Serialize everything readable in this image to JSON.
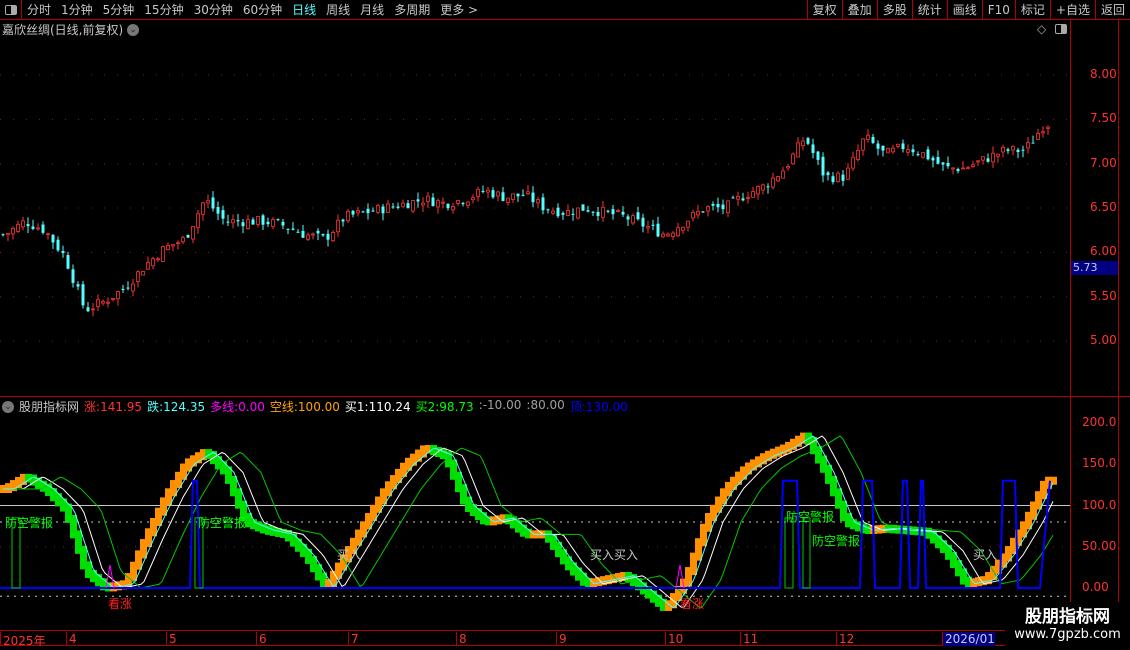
{
  "toolbar": {
    "periods": [
      "分时",
      "1分钟",
      "5分钟",
      "15分钟",
      "30分钟",
      "60分钟",
      "日线",
      "周线",
      "月线",
      "多周期",
      "更多 >"
    ],
    "active_period": "日线",
    "buttons": [
      "复权",
      "叠加",
      "多股",
      "统计",
      "画线",
      "F10",
      "标记",
      "+自选",
      "返回"
    ]
  },
  "stock": {
    "title": "嘉欣丝绸(日线,前复权)",
    "current_price": "5.73"
  },
  "price_axis": [
    "8.00",
    "7.50",
    "7.00",
    "6.50",
    "6.00",
    "5.50",
    "5.00"
  ],
  "indicator": {
    "name": "股朋指标网",
    "legend": [
      {
        "label": "涨:",
        "value": "141.95",
        "color": "#ff3232"
      },
      {
        "label": "跌:",
        "value": "124.35",
        "color": "#54ffff"
      },
      {
        "label": "多线:",
        "value": "0.00",
        "color": "#ff00ff"
      },
      {
        "label": "空线:",
        "value": "100.00",
        "color": "#ffa500"
      },
      {
        "label": "买1:",
        "value": "110.24",
        "color": "#ffffff"
      },
      {
        "label": "买2:",
        "value": "98.73",
        "color": "#00ff00"
      },
      {
        "label": ":",
        "value": "-10.00",
        "color": "#a0a0a0"
      },
      {
        "label": ":",
        "value": "80.00",
        "color": "#a0a0a0"
      },
      {
        "label": "顶:",
        "value": "130.00",
        "color": "#0000ff"
      }
    ],
    "axis": [
      "200.0",
      "150.0",
      "100.0",
      "50.00",
      "0.00"
    ],
    "signals": {
      "alarm": "防空警报",
      "buy": "买入",
      "buy2": "买入买入",
      "bull": "看涨"
    }
  },
  "date_axis": [
    "2025年",
    "4",
    "5",
    "6",
    "7",
    "8",
    "9",
    "10",
    "11",
    "12",
    "2026/01"
  ],
  "watermark": {
    "name": "股朋指标网",
    "url": "www.7gpzb.com"
  },
  "chart_data": {
    "type": "candlestick",
    "closes_approx": [
      6.2,
      6.35,
      6.25,
      5.95,
      5.35,
      5.45,
      5.6,
      5.85,
      6.05,
      6.15,
      6.6,
      6.35,
      6.35,
      6.35,
      6.3,
      6.2,
      6.15,
      6.4,
      6.45,
      6.5,
      6.55,
      6.6,
      6.55,
      6.6,
      6.7,
      6.62,
      6.65,
      6.5,
      6.45,
      6.5,
      6.45,
      6.4,
      6.3,
      6.2,
      6.35,
      6.5,
      6.5,
      6.65,
      6.75,
      6.95,
      7.3,
      6.85,
      6.85,
      7.3,
      7.1,
      7.2,
      7.1,
      6.95,
      6.95,
      7.05,
      7.15,
      7.15,
      7.45
    ],
    "oscillator_approx": [
      120,
      135,
      120,
      95,
      20,
      0,
      5,
      60,
      110,
      150,
      165,
      140,
      80,
      70,
      65,
      40,
      0,
      40,
      80,
      120,
      150,
      170,
      160,
      100,
      80,
      85,
      65,
      65,
      30,
      5,
      10,
      15,
      -5,
      -25,
      10,
      80,
      120,
      145,
      160,
      170,
      185,
      140,
      80,
      70,
      72,
      70,
      68,
      45,
      5,
      10,
      40,
      80,
      130
    ],
    "price_range": [
      4.4,
      8.4
    ],
    "indicator_range": [
      -30,
      220
    ]
  }
}
